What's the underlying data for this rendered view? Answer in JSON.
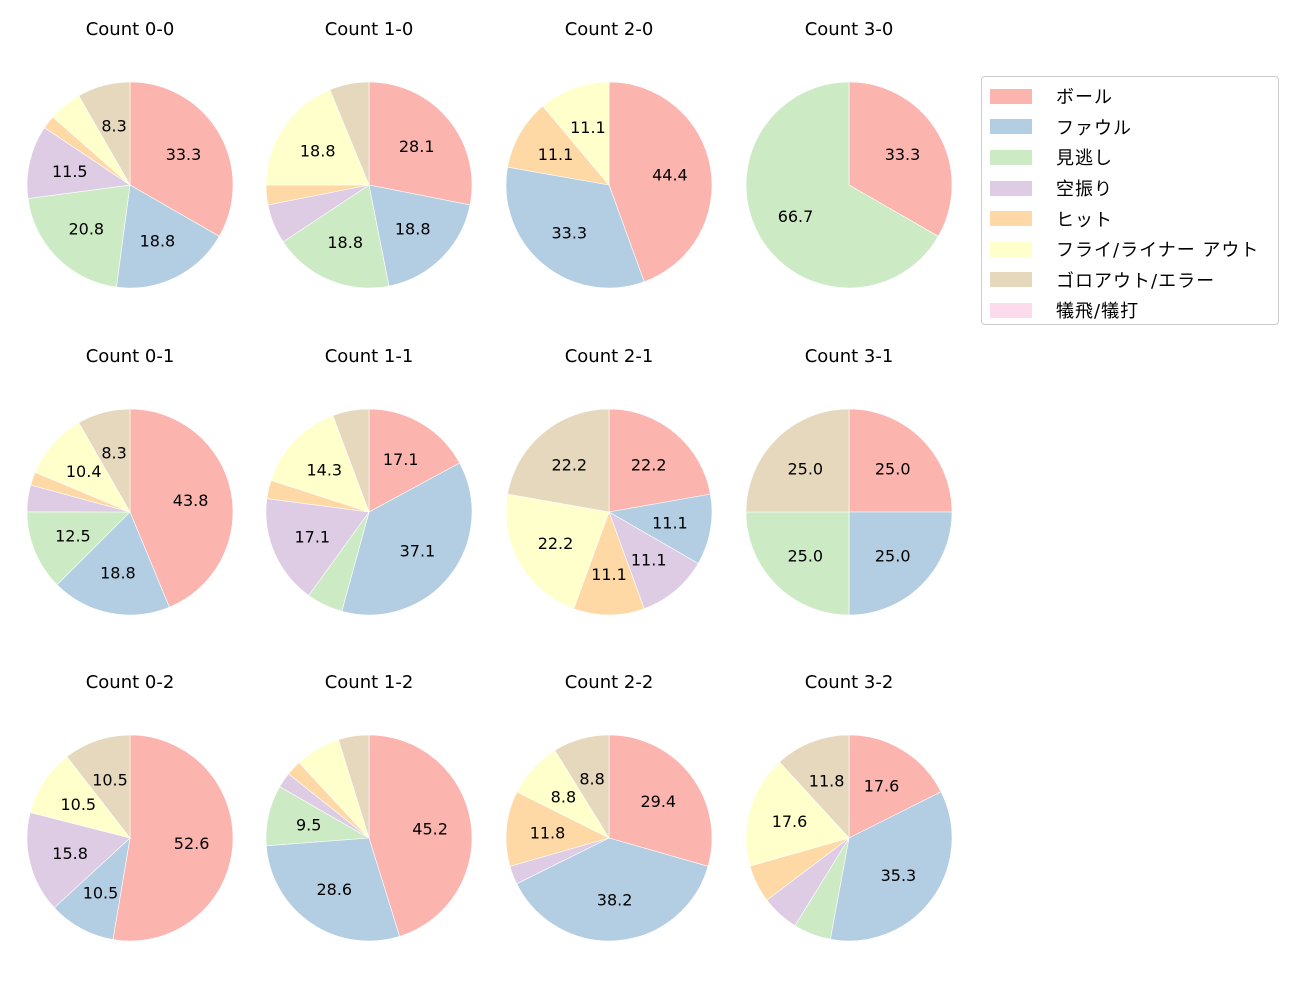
{
  "chart_data": {
    "type": "pie",
    "title": "",
    "categories": [
      "ボール",
      "ファウル",
      "見逃し",
      "空振り",
      "ヒット",
      "フライ/ライナー アウト",
      "ゴロアウト/エラー",
      "犠飛/犠打"
    ],
    "colors": [
      "#fbb4ae",
      "#b3cde3",
      "#ccebc5",
      "#decbe4",
      "#fed9a6",
      "#ffffcc",
      "#e5d8bd",
      "#fddaec"
    ],
    "legend_position": "upper right",
    "label_min_pct": 8,
    "pies": [
      {
        "title": "Count 0-0",
        "row": 0,
        "col": 0,
        "values": [
          33.3,
          18.8,
          20.8,
          11.5,
          2.1,
          5.2,
          8.3,
          0
        ]
      },
      {
        "title": "Count 1-0",
        "row": 0,
        "col": 1,
        "values": [
          28.1,
          18.8,
          18.8,
          6.2,
          3.1,
          18.8,
          6.2,
          0
        ]
      },
      {
        "title": "Count 2-0",
        "row": 0,
        "col": 2,
        "values": [
          44.4,
          33.3,
          0,
          0,
          11.1,
          11.1,
          0,
          0
        ]
      },
      {
        "title": "Count 3-0",
        "row": 0,
        "col": 3,
        "values": [
          33.3,
          0,
          66.7,
          0,
          0,
          0,
          0,
          0
        ]
      },
      {
        "title": "Count 0-1",
        "row": 1,
        "col": 0,
        "values": [
          43.8,
          18.8,
          12.5,
          4.2,
          2.1,
          10.4,
          8.3,
          0
        ]
      },
      {
        "title": "Count 1-1",
        "row": 1,
        "col": 1,
        "values": [
          17.1,
          37.1,
          5.7,
          17.1,
          2.9,
          14.3,
          5.7,
          0
        ]
      },
      {
        "title": "Count 2-1",
        "row": 1,
        "col": 2,
        "values": [
          22.2,
          11.1,
          0,
          11.1,
          11.1,
          22.2,
          22.2,
          0
        ]
      },
      {
        "title": "Count 3-1",
        "row": 1,
        "col": 3,
        "values": [
          25.0,
          25.0,
          25.0,
          0,
          0,
          0,
          25.0,
          0
        ]
      },
      {
        "title": "Count 0-2",
        "row": 2,
        "col": 0,
        "values": [
          52.6,
          10.5,
          0,
          15.8,
          0,
          10.5,
          10.5,
          0
        ]
      },
      {
        "title": "Count 1-2",
        "row": 2,
        "col": 1,
        "values": [
          45.2,
          28.6,
          9.5,
          2.4,
          2.4,
          7.1,
          4.8,
          0
        ]
      },
      {
        "title": "Count 2-2",
        "row": 2,
        "col": 2,
        "values": [
          29.4,
          38.2,
          0,
          2.9,
          11.8,
          8.8,
          8.8,
          0
        ]
      },
      {
        "title": "Count 3-2",
        "row": 2,
        "col": 3,
        "values": [
          17.6,
          35.3,
          5.9,
          5.9,
          5.9,
          17.6,
          11.8,
          0
        ]
      }
    ]
  },
  "legend": {
    "items": [
      {
        "label": "ボール",
        "color": "#fbb4ae"
      },
      {
        "label": "ファウル",
        "color": "#b3cde3"
      },
      {
        "label": "見逃し",
        "color": "#ccebc5"
      },
      {
        "label": "空振り",
        "color": "#decbe4"
      },
      {
        "label": "ヒット",
        "color": "#fed9a6"
      },
      {
        "label": "フライ/ライナー アウト",
        "color": "#ffffcc"
      },
      {
        "label": "ゴロアウト/エラー",
        "color": "#e5d8bd"
      },
      {
        "label": "犠飛/犠打",
        "color": "#fddaec"
      }
    ]
  }
}
